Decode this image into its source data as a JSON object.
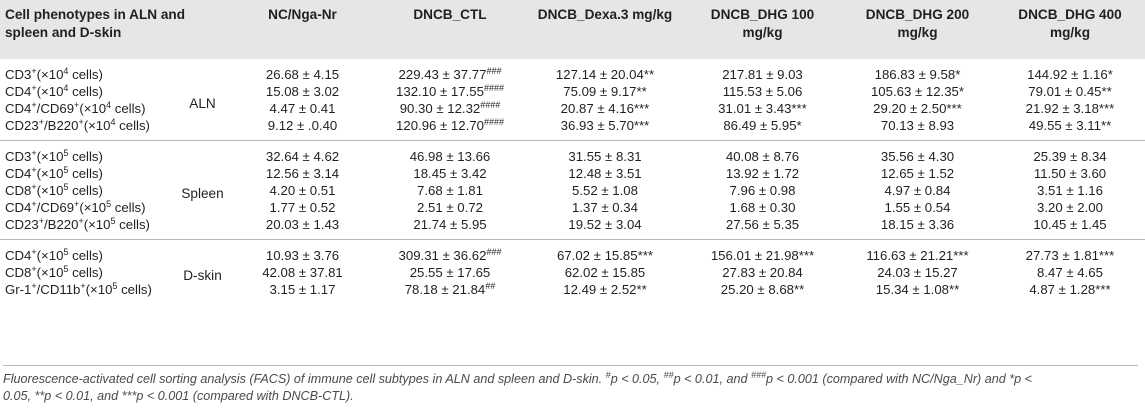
{
  "table": {
    "headers": [
      "Cell phenotypes in ALN and spleen and D-skin",
      "NC/Nga-Nr",
      "DNCB_CTL",
      "DNCB_Dexa.3 mg/kg",
      "DNCB_DHG 100 mg/kg",
      "DNCB_DHG 200 mg/kg",
      "DNCB_DHG 400 mg/kg"
    ],
    "groups": [
      {
        "name": "ALN",
        "rows": [
          {
            "phen_main": "CD3",
            "phen_sup": "+",
            "phen_unit": "(×10",
            "unit_sup": "4",
            "unit_tail": " cells)",
            "values": [
              "26.68 ± 4.15",
              "229.43 ± 37.77",
              "127.14 ± 20.04**",
              "217.81 ± 9.03",
              "186.83 ± 9.58*",
              "144.92 ± 1.16*"
            ],
            "marks": [
              "",
              "###",
              "",
              "",
              "",
              ""
            ]
          },
          {
            "phen_main": "CD4",
            "phen_sup": "+",
            "phen_unit": "(×10",
            "unit_sup": "4",
            "unit_tail": " cells)",
            "values": [
              "15.08 ± 3.02",
              "132.10 ± 17.55",
              "75.09 ± 9.17**",
              "115.53 ± 5.06",
              "105.63 ± 12.35*",
              "79.01 ± 0.45**"
            ],
            "marks": [
              "",
              "####",
              "",
              "",
              "",
              ""
            ]
          },
          {
            "phen_main": "CD4",
            "phen_sup": "+",
            "phen_mid": "/CD69",
            "mid_sup": "+",
            "phen_unit": "(×10",
            "unit_sup": "4",
            "unit_tail": " cells)",
            "values": [
              "4.47 ± 0.41",
              "90.30 ± 12.32",
              "20.87 ± 4.16***",
              "31.01 ± 3.43***",
              "29.20 ± 2.50***",
              "21.92 ± 3.18***"
            ],
            "marks": [
              "",
              "####",
              "",
              "",
              "",
              ""
            ]
          },
          {
            "phen_main": "CD23",
            "phen_sup": "+",
            "phen_mid": "/B220",
            "mid_sup": "+",
            "phen_unit": "(×10",
            "unit_sup": "4",
            "unit_tail": " cells)",
            "values": [
              "9.12 ± .0.40",
              "120.96 ± 12.70",
              "36.93 ± 5.70***",
              "86.49 ± 5.95*",
              "70.13 ± 8.93",
              "49.55 ± 3.11**"
            ],
            "marks": [
              "",
              "####",
              "",
              "",
              "",
              ""
            ]
          }
        ]
      },
      {
        "name": "Spleen",
        "rows": [
          {
            "phen_main": "CD3",
            "phen_sup": "+",
            "phen_unit": "(×10",
            "unit_sup": "5",
            "unit_tail": " cells)",
            "values": [
              "32.64 ± 4.62",
              "46.98 ± 13.66",
              "31.55 ± 8.31",
              "40.08 ± 8.76",
              "35.56 ± 4.30",
              "25.39 ± 8.34"
            ],
            "marks": [
              "",
              "",
              "",
              "",
              "",
              ""
            ]
          },
          {
            "phen_main": "CD4",
            "phen_sup": "+",
            "phen_unit": "(×10",
            "unit_sup": "5",
            "unit_tail": " cells)",
            "values": [
              "12.56 ± 3.14",
              "18.45 ± 3.42",
              "12.48 ± 3.51",
              "13.92 ± 1.72",
              "12.65 ± 1.52",
              "11.50 ± 3.60"
            ],
            "marks": [
              "",
              "",
              "",
              "",
              "",
              ""
            ]
          },
          {
            "phen_main": "CD8",
            "phen_sup": "+",
            "phen_unit": "(×10",
            "unit_sup": "5",
            "unit_tail": " cells)",
            "values": [
              "4.20 ± 0.51",
              "7.68 ± 1.81",
              "5.52 ± 1.08",
              "7.96 ± 0.98",
              "4.97 ± 0.84",
              "3.51 ± 1.16"
            ],
            "marks": [
              "",
              "",
              "",
              "",
              "",
              ""
            ]
          },
          {
            "phen_main": "CD4",
            "phen_sup": "+",
            "phen_mid": "/CD69",
            "mid_sup": "+",
            "phen_unit": "(×10",
            "unit_sup": "5",
            "unit_tail": " cells)",
            "values": [
              "1.77 ± 0.52",
              "2.51 ± 0.72",
              "1.37 ± 0.34",
              "1.68 ± 0.30",
              "1.55 ± 0.54",
              "3.20 ± 2.00"
            ],
            "marks": [
              "",
              "",
              "",
              "",
              "",
              ""
            ]
          },
          {
            "phen_main": "CD23",
            "phen_sup": "+",
            "phen_mid": "/B220",
            "mid_sup": "+",
            "phen_unit": "(×10",
            "unit_sup": "5",
            "unit_tail": " cells)",
            "values": [
              "20.03 ± 1.43",
              "21.74 ± 5.95",
              "19.52 ± 3.04",
              "27.56 ± 5.35",
              "18.15 ± 3.36",
              "10.45 ± 1.45"
            ],
            "marks": [
              "",
              "",
              "",
              "",
              "",
              ""
            ]
          }
        ]
      },
      {
        "name": "D-skin",
        "rows": [
          {
            "phen_main": "CD4",
            "phen_sup": "+",
            "phen_unit": "(×10",
            "unit_sup": "5",
            "unit_tail": " cells)",
            "values": [
              "10.93 ± 3.76",
              "309.31 ± 36.62",
              "67.02 ± 15.85***",
              "156.01 ± 21.98***",
              "116.63 ± 21.21***",
              "27.73 ± 1.81***"
            ],
            "marks": [
              "",
              "###",
              "",
              "",
              "",
              ""
            ]
          },
          {
            "phen_main": "CD8",
            "phen_sup": "+",
            "phen_unit": "(×10",
            "unit_sup": "5",
            "unit_tail": " cells)",
            "values": [
              "42.08 ± 37.81",
              "25.55 ± 17.65",
              "62.02 ± 15.85",
              "27.83 ± 20.84",
              "24.03 ± 15.27",
              "8.47 ± 4.65"
            ],
            "marks": [
              "",
              "",
              "",
              "",
              "",
              ""
            ]
          },
          {
            "phen_main": "Gr-1",
            "phen_sup": "+",
            "phen_mid": "/CD11b",
            "mid_sup": "+",
            "phen_unit": "(×10",
            "unit_sup": "5",
            "unit_tail": " cells)",
            "values": [
              "3.15 ± 1.17",
              "78.18 ± 21.84",
              "12.49 ± 2.52**",
              "25.20 ± 8.68**",
              "15.34 ± 1.08**",
              "4.87 ± 1.28***"
            ],
            "marks": [
              "",
              "##",
              "",
              "",
              "",
              ""
            ]
          }
        ]
      }
    ]
  },
  "caption": {
    "line1_a": "Fluorescence-activated cell sorting analysis (FACS) of immune cell subtypes in ALN and spleen and D-skin. ",
    "m1": "#",
    "line1_b": "p < 0.05, ",
    "m2": "##",
    "line1_c": "p < 0.01, and ",
    "m3": "###",
    "line1_d": "p < 0.001 (compared with NC/Nga_Nr) and *p <",
    "line2": "0.05, **p < 0.01, and ***p < 0.001 (compared with DNCB-CTL)."
  }
}
